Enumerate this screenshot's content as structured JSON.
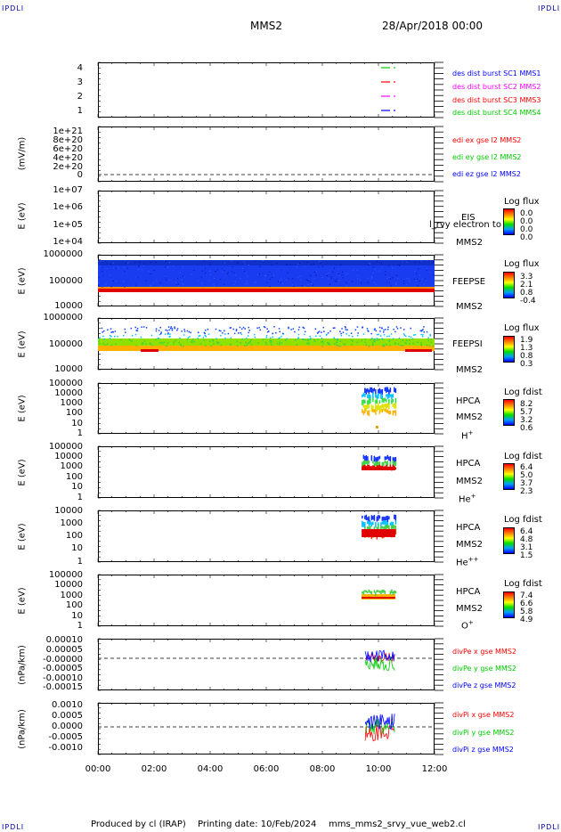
{
  "corners": {
    "tl": "IPDLI",
    "tr": "IPDLI",
    "bl": "IPDLI",
    "br": "IPDLI"
  },
  "header": {
    "spacecraft": "MMS2",
    "date": "28/Apr/2018 00:00"
  },
  "footer": {
    "produced": "Produced by cl (IRAP)",
    "printing": "Printing date: 10/Feb/2024",
    "file": "mms_mms2_srvy_vue_web2.cl"
  },
  "colors": {
    "mms1": "#0000ff",
    "mms2": "#ff00ff",
    "mms3": "#ff0000",
    "mms4": "#00cc00"
  },
  "chart_data": [
    {
      "type": "line",
      "panel": "burst",
      "yticks": [
        "4",
        "3",
        "2",
        "1"
      ],
      "ylim": [
        0.5,
        4.5
      ],
      "legend": [
        "des dist burst SC1 MMS1",
        "des dist burst SC2 MMS2",
        "des dist burst SC3 MMS3",
        "des dist burst SC4 MMS4"
      ]
    },
    {
      "type": "line",
      "panel": "edi",
      "ylabel": "(mV/m)",
      "yticks": [
        "1e+21",
        "8e+20",
        "6e+20",
        "4e+20",
        "2e+20",
        "0"
      ],
      "legend": [
        "edi ex gse l2 MMS2",
        "edi ey gse l2 MMS2",
        "edi ez gse l2 MMS2"
      ]
    },
    {
      "type": "heatmap",
      "panel": "eis",
      "ylabel": "E (eV)",
      "yticks": [
        "1e+07",
        "1e+06",
        "1e+05",
        "1e+04"
      ],
      "instrument": "EIS",
      "overlay": "l_rvy electron to",
      "sc": "MMS2",
      "cbar_title": "Log flux",
      "cbar_values": [
        "0.0",
        "0.0",
        "0.0",
        "0.0"
      ]
    },
    {
      "type": "heatmap",
      "panel": "feepse",
      "ylabel": "E (eV)",
      "yticks": [
        "1000000",
        "100000",
        "10000"
      ],
      "instrument": "FEEPSE",
      "sc": "MMS2",
      "cbar_title": "Log flux",
      "cbar_values": [
        "3.3",
        "2.1",
        "0.8",
        "-0.4"
      ]
    },
    {
      "type": "heatmap",
      "panel": "feepsi",
      "ylabel": "E (eV)",
      "yticks": [
        "1000000",
        "100000",
        "10000"
      ],
      "instrument": "FEEPSI",
      "sc": "MMS2",
      "cbar_title": "Log flux",
      "cbar_values": [
        "1.9",
        "1.3",
        "0.8",
        "0.3"
      ]
    },
    {
      "type": "heatmap",
      "panel": "hpca-h",
      "ylabel": "E (eV)",
      "yticks": [
        "100000",
        "10000",
        "1000",
        "100",
        "10",
        "1"
      ],
      "instrument": "HPCA",
      "sc": "MMS2",
      "species": "H",
      "charge": "+",
      "cbar_title": "Log fdist",
      "cbar_values": [
        "8.2",
        "5.7",
        "3.2",
        "0.6"
      ]
    },
    {
      "type": "heatmap",
      "panel": "hpca-he",
      "ylabel": "E (eV)",
      "yticks": [
        "100000",
        "10000",
        "1000",
        "100",
        "10",
        "1"
      ],
      "instrument": "HPCA",
      "sc": "MMS2",
      "species": "He",
      "charge": "+",
      "cbar_title": "Log fdist",
      "cbar_values": [
        "6.4",
        "5.0",
        "3.7",
        "2.3"
      ]
    },
    {
      "type": "heatmap",
      "panel": "hpca-he2",
      "ylabel": "E (eV)",
      "yticks": [
        "10000",
        "1000",
        "100",
        "10",
        "1"
      ],
      "instrument": "HPCA",
      "sc": "MMS2",
      "species": "He",
      "charge": "++",
      "cbar_title": "Log fdist",
      "cbar_values": [
        "6.4",
        "4.8",
        "3.1",
        "1.5"
      ]
    },
    {
      "type": "heatmap",
      "panel": "hpca-o",
      "ylabel": "E (eV)",
      "yticks": [
        "100000",
        "10000",
        "1000",
        "100",
        "10",
        "1"
      ],
      "instrument": "HPCA",
      "sc": "MMS2",
      "species": "O",
      "charge": "+",
      "cbar_title": "Log fdist",
      "cbar_values": [
        "7.4",
        "6.6",
        "5.8",
        "4.9"
      ]
    },
    {
      "type": "line",
      "panel": "divpe",
      "ylabel": "(nPa/km)",
      "yticks": [
        "0.00010",
        "0.00005",
        "-0.00000",
        "-0.00005",
        "-0.00010",
        "-0.00015"
      ],
      "ylim": [
        -0.00015,
        0.0001
      ],
      "legend": [
        "divPe x gse MMS2",
        "divPe y gse MMS2",
        "divPe z gse MMS2"
      ]
    },
    {
      "type": "line",
      "panel": "divpi",
      "ylabel": "(nPa/km)",
      "yticks": [
        "0.0010",
        "0.0005",
        "0.0000",
        "-0.0005",
        "-0.0010"
      ],
      "ylim": [
        -0.0012,
        0.0011
      ],
      "legend": [
        "divPi x gse MMS2",
        "divPi y gse MMS2",
        "divPi z gse MMS2"
      ]
    }
  ],
  "xaxis": {
    "ticks": [
      "00:00",
      "02:00",
      "04:00",
      "06:00",
      "08:00",
      "10:00",
      "12:00"
    ]
  }
}
